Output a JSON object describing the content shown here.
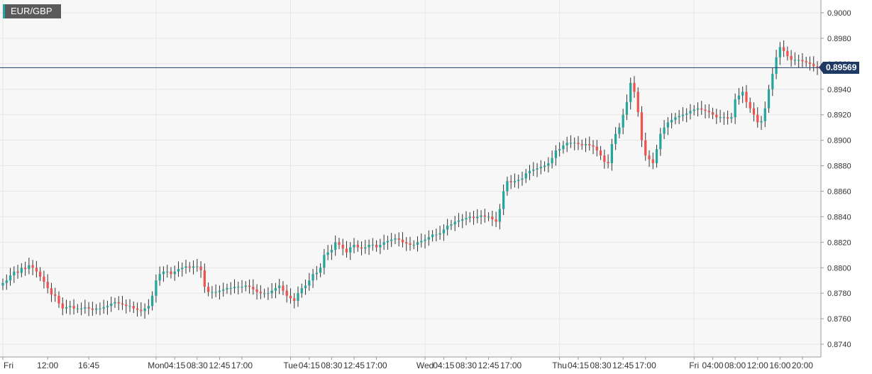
{
  "chart_data": {
    "type": "candlestick",
    "symbol": "EUR/GBP",
    "last_price": "0.89569",
    "last_price_value": 0.89569,
    "ylim": [
      0.873,
      0.901
    ],
    "y_ticks": [
      "0.9000",
      "0.8980",
      "0.8960",
      "0.8940",
      "0.8920",
      "0.8900",
      "0.8880",
      "0.8860",
      "0.8840",
      "0.8820",
      "0.8800",
      "0.8780",
      "0.8760",
      "0.8740"
    ],
    "y_tick_values": [
      0.9,
      0.898,
      0.896,
      0.894,
      0.892,
      0.89,
      0.888,
      0.886,
      0.884,
      0.882,
      0.88,
      0.878,
      0.876,
      0.874
    ],
    "x_ticks": [
      "Fri",
      "12:00",
      "16:45",
      "Mon",
      "04:15",
      "08:30",
      "12:45",
      "17:00",
      "Tue",
      "04:15",
      "08:30",
      "12:45",
      "17:00",
      "Wed",
      "04:15",
      "08:30",
      "12:45",
      "17:00",
      "Thu",
      "04:15",
      "08:30",
      "12:45",
      "17:00",
      "Fri",
      "04:00",
      "08:00",
      "12:00",
      "16:00",
      "20:00"
    ],
    "x_tick_pos": [
      0,
      12,
      23,
      41,
      46,
      52,
      58,
      64,
      77,
      82,
      88,
      94,
      100,
      113,
      118,
      124,
      130,
      136,
      149,
      154,
      160,
      166,
      172,
      185,
      190,
      196,
      202,
      208,
      214
    ],
    "day_separators": [
      0,
      41,
      77,
      113,
      149,
      185
    ],
    "n_candles": 219,
    "up_color": "#26a69a",
    "down_color": "#ef5350",
    "wick_color": "#333333",
    "last_price_line_color": "#1e3a64",
    "grid": true,
    "closes": [
      0.8788,
      0.879,
      0.8794,
      0.8797,
      0.8796,
      0.88,
      0.8799,
      0.8802,
      0.88,
      0.8797,
      0.8793,
      0.8789,
      0.8784,
      0.8779,
      0.8778,
      0.8772,
      0.8768,
      0.8769,
      0.877,
      0.8768,
      0.8768,
      0.8768,
      0.8769,
      0.8768,
      0.8767,
      0.8768,
      0.8768,
      0.8769,
      0.877,
      0.8772,
      0.8773,
      0.8772,
      0.8771,
      0.877,
      0.877,
      0.8768,
      0.8767,
      0.8766,
      0.8768,
      0.877,
      0.8778,
      0.879,
      0.8795,
      0.8797,
      0.8797,
      0.8795,
      0.8797,
      0.8799,
      0.88,
      0.8801,
      0.88,
      0.8801,
      0.8801,
      0.8798,
      0.8785,
      0.8781,
      0.8781,
      0.8781,
      0.8782,
      0.8783,
      0.8784,
      0.8784,
      0.8785,
      0.8785,
      0.8785,
      0.8786,
      0.8785,
      0.8783,
      0.8781,
      0.878,
      0.878,
      0.878,
      0.8782,
      0.8784,
      0.8786,
      0.8782,
      0.8778,
      0.8776,
      0.8774,
      0.878,
      0.8784,
      0.8786,
      0.879,
      0.8795,
      0.8796,
      0.88,
      0.881,
      0.8812,
      0.8814,
      0.882,
      0.8818,
      0.8815,
      0.8812,
      0.8816,
      0.8818,
      0.8816,
      0.8815,
      0.8816,
      0.8818,
      0.8818,
      0.8816,
      0.8818,
      0.882,
      0.8821,
      0.8822,
      0.8823,
      0.8822,
      0.882,
      0.8819,
      0.8818,
      0.8818,
      0.882,
      0.8821,
      0.8822,
      0.8824,
      0.8826,
      0.8826,
      0.8827,
      0.883,
      0.8833,
      0.8834,
      0.8836,
      0.8837,
      0.8838,
      0.8839,
      0.884,
      0.8839,
      0.884,
      0.8841,
      0.884,
      0.884,
      0.8838,
      0.8836,
      0.8846,
      0.886,
      0.8868,
      0.8867,
      0.8868,
      0.8869,
      0.887,
      0.8874,
      0.8876,
      0.8877,
      0.8878,
      0.8879,
      0.888,
      0.8882,
      0.8886,
      0.8892,
      0.8893,
      0.8896,
      0.8898,
      0.8898,
      0.8898,
      0.8897,
      0.8896,
      0.8897,
      0.8896,
      0.8895,
      0.8892,
      0.8888,
      0.8883,
      0.8882,
      0.8897,
      0.8905,
      0.891,
      0.892,
      0.893,
      0.8945,
      0.8938,
      0.8922,
      0.89,
      0.8888,
      0.8885,
      0.8882,
      0.8893,
      0.8905,
      0.891,
      0.8914,
      0.8916,
      0.8918,
      0.8919,
      0.892,
      0.8921,
      0.8923,
      0.8924,
      0.8925,
      0.8924,
      0.8923,
      0.8922,
      0.892,
      0.8918,
      0.8918,
      0.8918,
      0.8917,
      0.8918,
      0.8932,
      0.8935,
      0.8938,
      0.893,
      0.8925,
      0.892,
      0.8914,
      0.8915,
      0.8925,
      0.894,
      0.8952,
      0.8965,
      0.8973,
      0.897,
      0.8966,
      0.8963,
      0.8963,
      0.8963,
      0.8962,
      0.8961,
      0.896,
      0.8958,
      0.8957
    ]
  }
}
